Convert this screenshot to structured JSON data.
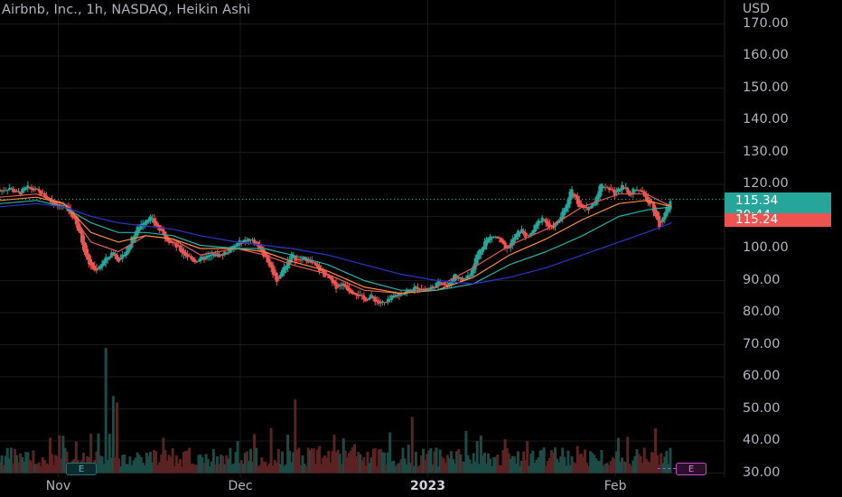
{
  "header": {
    "title": "Airbnb, Inc., 1h, NASDAQ, Heikin Ashi"
  },
  "axis": {
    "currency": "USD"
  },
  "price_labels": {
    "last": "115.34",
    "countdown": "30:44",
    "prev_close": "115.24"
  },
  "earnings": {
    "past_label": "E",
    "upcoming_label": "E"
  },
  "colors": {
    "up": "#26a69a",
    "down": "#ef5350",
    "ema_fast": "#e65a5a",
    "ema_mid": "#ff8a3d",
    "ema_slow": "#22b3a8",
    "ema_long": "#2a35c9",
    "background": "#000000"
  },
  "chart_data": {
    "type": "candlestick",
    "title": "Airbnb, Inc., 1h, NASDAQ, Heikin Ashi",
    "ylabel": "USD",
    "ylim": [
      30,
      170
    ],
    "y_ticks": [
      "170.00",
      "160.00",
      "150.00",
      "140.00",
      "130.00",
      "120.00",
      "110.00",
      "100.00",
      "90.00",
      "80.00",
      "70.00",
      "60.00",
      "50.00",
      "40.00",
      "30.00"
    ],
    "x_ticks": [
      {
        "label": "Nov",
        "t": 0.32,
        "bold": false
      },
      {
        "label": "Dec",
        "t": 1.32,
        "bold": false
      },
      {
        "label": "2023",
        "t": 2.35,
        "bold": true
      },
      {
        "label": "Feb",
        "t": 3.38,
        "bold": false
      }
    ],
    "x_range_months": [
      0.0,
      3.98
    ],
    "last_price": 115.34,
    "prev_close": 115.24,
    "price_path": [
      [
        0.0,
        118
      ],
      [
        0.05,
        119
      ],
      [
        0.1,
        117
      ],
      [
        0.15,
        119
      ],
      [
        0.2,
        118
      ],
      [
        0.25,
        116
      ],
      [
        0.3,
        114
      ],
      [
        0.36,
        113
      ],
      [
        0.4,
        110
      ],
      [
        0.44,
        104
      ],
      [
        0.48,
        96
      ],
      [
        0.52,
        93
      ],
      [
        0.57,
        96
      ],
      [
        0.62,
        99
      ],
      [
        0.66,
        96
      ],
      [
        0.7,
        100
      ],
      [
        0.74,
        105
      ],
      [
        0.78,
        108
      ],
      [
        0.82,
        110
      ],
      [
        0.86,
        107
      ],
      [
        0.9,
        104
      ],
      [
        0.94,
        102
      ],
      [
        0.98,
        100
      ],
      [
        1.02,
        98
      ],
      [
        1.07,
        96
      ],
      [
        1.12,
        97
      ],
      [
        1.17,
        98
      ],
      [
        1.22,
        98
      ],
      [
        1.27,
        100
      ],
      [
        1.32,
        102
      ],
      [
        1.37,
        103
      ],
      [
        1.42,
        101
      ],
      [
        1.47,
        96
      ],
      [
        1.52,
        90
      ],
      [
        1.56,
        94
      ],
      [
        1.6,
        98
      ],
      [
        1.64,
        96
      ],
      [
        1.68,
        97
      ],
      [
        1.72,
        95
      ],
      [
        1.76,
        93
      ],
      [
        1.8,
        91
      ],
      [
        1.84,
        88
      ],
      [
        1.88,
        89
      ],
      [
        1.92,
        87
      ],
      [
        1.96,
        86
      ],
      [
        2.0,
        84
      ],
      [
        2.04,
        85
      ],
      [
        2.08,
        83
      ],
      [
        2.12,
        83
      ],
      [
        2.16,
        85
      ],
      [
        2.2,
        86
      ],
      [
        2.25,
        87
      ],
      [
        2.3,
        88
      ],
      [
        2.34,
        87
      ],
      [
        2.38,
        88
      ],
      [
        2.42,
        90
      ],
      [
        2.46,
        88
      ],
      [
        2.5,
        92
      ],
      [
        2.54,
        90
      ],
      [
        2.58,
        92
      ],
      [
        2.62,
        98
      ],
      [
        2.66,
        102
      ],
      [
        2.7,
        104
      ],
      [
        2.74,
        103
      ],
      [
        2.78,
        99
      ],
      [
        2.82,
        103
      ],
      [
        2.86,
        106
      ],
      [
        2.9,
        103
      ],
      [
        2.94,
        107
      ],
      [
        2.98,
        110
      ],
      [
        3.02,
        106
      ],
      [
        3.06,
        108
      ],
      [
        3.1,
        112
      ],
      [
        3.14,
        119
      ],
      [
        3.18,
        113
      ],
      [
        3.22,
        112
      ],
      [
        3.26,
        114
      ],
      [
        3.3,
        120
      ],
      [
        3.34,
        119
      ],
      [
        3.38,
        117
      ],
      [
        3.42,
        120
      ],
      [
        3.46,
        117
      ],
      [
        3.5,
        119
      ],
      [
        3.54,
        116
      ],
      [
        3.58,
        114
      ],
      [
        3.62,
        107
      ],
      [
        3.66,
        112
      ],
      [
        3.69,
        115.34
      ]
    ],
    "series": [
      {
        "kind": "ema",
        "values": [
          [
            0.0,
            116
          ],
          [
            0.2,
            117
          ],
          [
            0.35,
            114
          ],
          [
            0.5,
            102
          ],
          [
            0.65,
            99
          ],
          [
            0.8,
            104
          ],
          [
            0.95,
            103
          ],
          [
            1.1,
            98
          ],
          [
            1.3,
            100
          ],
          [
            1.45,
            98
          ],
          [
            1.6,
            95
          ],
          [
            1.8,
            92
          ],
          [
            2.0,
            87
          ],
          [
            2.2,
            86
          ],
          [
            2.4,
            88
          ],
          [
            2.6,
            94
          ],
          [
            2.8,
            101
          ],
          [
            3.0,
            106
          ],
          [
            3.2,
            113
          ],
          [
            3.4,
            117
          ],
          [
            3.55,
            117
          ],
          [
            3.69,
            113
          ]
        ]
      },
      {
        "kind": "ema",
        "values": [
          [
            0.0,
            115
          ],
          [
            0.2,
            116
          ],
          [
            0.35,
            114
          ],
          [
            0.5,
            105
          ],
          [
            0.65,
            102
          ],
          [
            0.8,
            104
          ],
          [
            0.95,
            103
          ],
          [
            1.1,
            100
          ],
          [
            1.3,
            100
          ],
          [
            1.45,
            99
          ],
          [
            1.6,
            96
          ],
          [
            1.8,
            93
          ],
          [
            2.0,
            88
          ],
          [
            2.2,
            86
          ],
          [
            2.4,
            87
          ],
          [
            2.6,
            91
          ],
          [
            2.8,
            98
          ],
          [
            3.0,
            103
          ],
          [
            3.2,
            109
          ],
          [
            3.4,
            114
          ],
          [
            3.55,
            115
          ],
          [
            3.69,
            113
          ]
        ]
      },
      {
        "kind": "ema",
        "values": [
          [
            0.0,
            114
          ],
          [
            0.2,
            115
          ],
          [
            0.35,
            113
          ],
          [
            0.5,
            108
          ],
          [
            0.65,
            105
          ],
          [
            0.8,
            105
          ],
          [
            0.95,
            104
          ],
          [
            1.1,
            101
          ],
          [
            1.3,
            100
          ],
          [
            1.45,
            100
          ],
          [
            1.6,
            98
          ],
          [
            1.8,
            95
          ],
          [
            2.0,
            90
          ],
          [
            2.2,
            87
          ],
          [
            2.4,
            87
          ],
          [
            2.6,
            89
          ],
          [
            2.8,
            95
          ],
          [
            3.0,
            99
          ],
          [
            3.2,
            104
          ],
          [
            3.4,
            110
          ],
          [
            3.55,
            112
          ],
          [
            3.69,
            113
          ]
        ]
      },
      {
        "kind": "ema",
        "values": [
          [
            0.0,
            113
          ],
          [
            0.2,
            114
          ],
          [
            0.35,
            113
          ],
          [
            0.5,
            110
          ],
          [
            0.65,
            108
          ],
          [
            0.8,
            107
          ],
          [
            0.95,
            106
          ],
          [
            1.1,
            104
          ],
          [
            1.3,
            102
          ],
          [
            1.45,
            101
          ],
          [
            1.6,
            100
          ],
          [
            1.8,
            98
          ],
          [
            2.0,
            95
          ],
          [
            2.2,
            92
          ],
          [
            2.4,
            90
          ],
          [
            2.6,
            89
          ],
          [
            2.8,
            91
          ],
          [
            3.0,
            94
          ],
          [
            3.2,
            98
          ],
          [
            3.4,
            102
          ],
          [
            3.55,
            105
          ],
          [
            3.69,
            108
          ]
        ]
      }
    ],
    "volume_spikes": [
      [
        0.58,
        39
      ],
      [
        0.62,
        24
      ],
      [
        0.64,
        22
      ],
      [
        0.28,
        11
      ],
      [
        1.62,
        23
      ],
      [
        1.58,
        12
      ],
      [
        2.9,
        10
      ],
      [
        3.4,
        11
      ],
      [
        0.9,
        11
      ],
      [
        1.95,
        9
      ],
      [
        2.62,
        10
      ],
      [
        3.05,
        8
      ],
      [
        3.6,
        7
      ]
    ]
  }
}
